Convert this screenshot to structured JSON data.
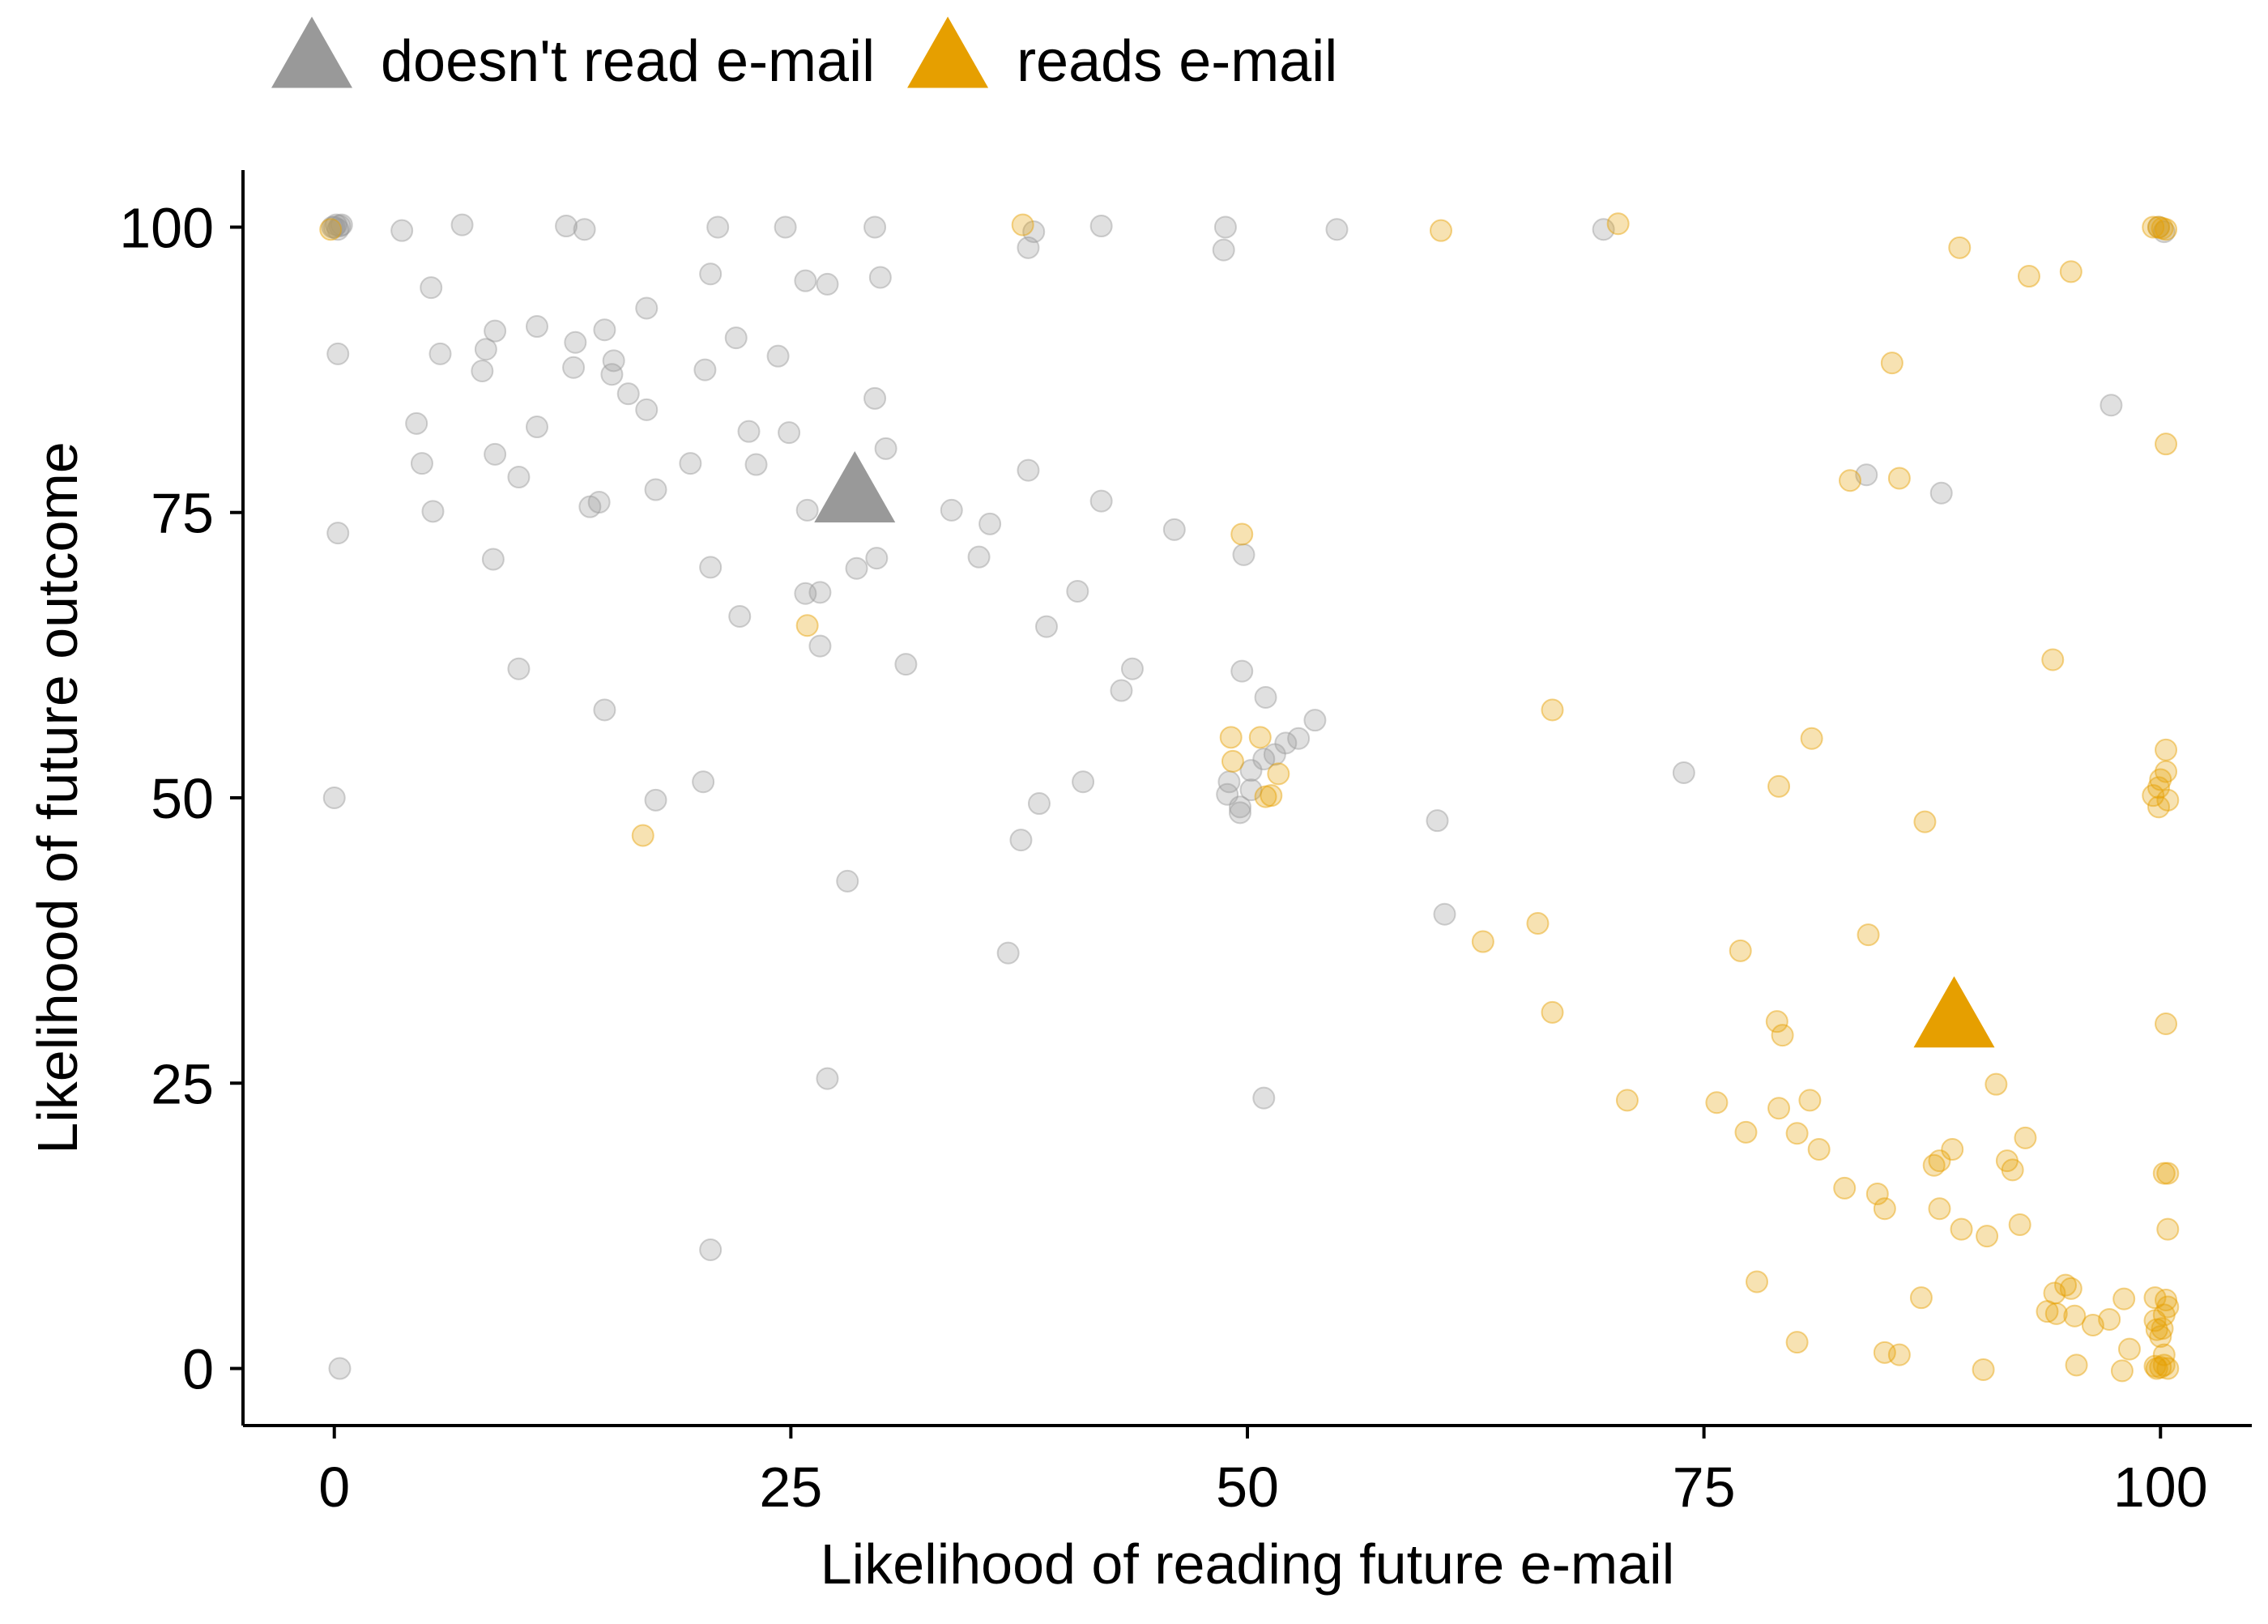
{
  "chart_data": {
    "type": "scatter",
    "title": "",
    "xlabel": "Likelihood of reading future e-mail",
    "ylabel": "Likelihood of future outcome",
    "xlim": [
      -5,
      105
    ],
    "ylim": [
      -5,
      105
    ],
    "xticks": [
      0,
      25,
      50,
      75,
      100
    ],
    "yticks": [
      0,
      25,
      50,
      75,
      100
    ],
    "grid": false,
    "legend_position": "top-left",
    "series": [
      {
        "name": "doesn't read e-mail",
        "color": "#999999",
        "marker": "circle",
        "opacity": 0.3,
        "mean_marker": "triangle",
        "mean": {
          "x": 28.5,
          "y": 76.5
        },
        "points": [
          [
            0,
            100
          ],
          [
            0.1,
            100.2
          ],
          [
            0.2,
            99.8
          ],
          [
            0.3,
            100.1
          ],
          [
            -0.1,
            100
          ],
          [
            0.4,
            100.2
          ],
          [
            3.7,
            99.7
          ],
          [
            7,
            100.2
          ],
          [
            12.7,
            100.1
          ],
          [
            13.7,
            99.8
          ],
          [
            21,
            100
          ],
          [
            24.7,
            100
          ],
          [
            29.6,
            100
          ],
          [
            38.3,
            99.6
          ],
          [
            42,
            100.1
          ],
          [
            48.8,
            100
          ],
          [
            54.9,
            99.8
          ],
          [
            69.5,
            99.8
          ],
          [
            38,
            98.2
          ],
          [
            48.7,
            98
          ],
          [
            99.9,
            100
          ],
          [
            100.2,
            99.6
          ],
          [
            0.2,
            88.9
          ],
          [
            5.3,
            94.7
          ],
          [
            5.8,
            88.9
          ],
          [
            8.3,
            89.3
          ],
          [
            8.1,
            87.4
          ],
          [
            8.8,
            90.9
          ],
          [
            11.1,
            91.3
          ],
          [
            13.2,
            89.9
          ],
          [
            13.1,
            87.7
          ],
          [
            14.8,
            91
          ],
          [
            15.3,
            88.3
          ],
          [
            15.2,
            87.1
          ],
          [
            17.1,
            92.9
          ],
          [
            20.6,
            95.9
          ],
          [
            22,
            90.3
          ],
          [
            20.3,
            87.5
          ],
          [
            24.3,
            88.7
          ],
          [
            25.8,
            95.3
          ],
          [
            27,
            95
          ],
          [
            29.9,
            95.6
          ],
          [
            16.1,
            85.4
          ],
          [
            17.1,
            84
          ],
          [
            29.6,
            85
          ],
          [
            4.5,
            82.8
          ],
          [
            4.8,
            79.3
          ],
          [
            8.8,
            80.1
          ],
          [
            11.1,
            82.5
          ],
          [
            10.1,
            78.1
          ],
          [
            5.4,
            75.1
          ],
          [
            14,
            75.5
          ],
          [
            14.5,
            75.9
          ],
          [
            17.6,
            77
          ],
          [
            19.5,
            79.3
          ],
          [
            22.7,
            82.1
          ],
          [
            23.1,
            79.2
          ],
          [
            24.9,
            82
          ],
          [
            30.2,
            80.6
          ],
          [
            25.9,
            75.2
          ],
          [
            38,
            78.7
          ],
          [
            0.2,
            73.2
          ],
          [
            8.7,
            70.9
          ],
          [
            20.6,
            70.2
          ],
          [
            29.7,
            71
          ],
          [
            35.9,
            74
          ],
          [
            33.8,
            75.2
          ],
          [
            35.3,
            71.1
          ],
          [
            42,
            76
          ],
          [
            46,
            73.5
          ],
          [
            49.8,
            71.3
          ],
          [
            28.6,
            70.1
          ],
          [
            25.8,
            67.9
          ],
          [
            26.6,
            68
          ],
          [
            22.2,
            65.9
          ],
          [
            26.6,
            63.3
          ],
          [
            39,
            65
          ],
          [
            40.7,
            68.1
          ],
          [
            10.1,
            61.3
          ],
          [
            31.3,
            61.7
          ],
          [
            43.7,
            61.3
          ],
          [
            43.1,
            59.4
          ],
          [
            49.7,
            61.1
          ],
          [
            51,
            58.8
          ],
          [
            53.7,
            56.8
          ],
          [
            52.8,
            55.2
          ],
          [
            52.1,
            54.8
          ],
          [
            51.5,
            53.8
          ],
          [
            50.9,
            53.4
          ],
          [
            50.2,
            52.4
          ],
          [
            49,
            51.4
          ],
          [
            48.9,
            50.3
          ],
          [
            49.6,
            49.2
          ],
          [
            49.6,
            48.7
          ],
          [
            50.2,
            50.7
          ],
          [
            14.8,
            57.7
          ],
          [
            17.6,
            49.8
          ],
          [
            20.2,
            51.4
          ],
          [
            38.6,
            49.5
          ],
          [
            41,
            51.4
          ],
          [
            37.6,
            46.3
          ],
          [
            60.4,
            48
          ],
          [
            73.9,
            52.2
          ],
          [
            0,
            50
          ],
          [
            28.1,
            42.7
          ],
          [
            60.8,
            39.8
          ],
          [
            36.9,
            36.4
          ],
          [
            27,
            25.4
          ],
          [
            50.9,
            23.7
          ],
          [
            20.6,
            10.4
          ],
          [
            0.3,
            0
          ],
          [
            97.3,
            84.4
          ],
          [
            83.9,
            78.3
          ],
          [
            88,
            76.7
          ]
        ]
      },
      {
        "name": "reads e-mail",
        "color": "#E69F00",
        "marker": "circle",
        "opacity": 0.3,
        "mean_marker": "triangle",
        "mean": {
          "x": 88.7,
          "y": 30.5
        },
        "points": [
          [
            -0.2,
            99.8
          ],
          [
            37.7,
            100.2
          ],
          [
            60.6,
            99.7
          ],
          [
            70.3,
            100.3
          ],
          [
            89,
            98.2
          ],
          [
            92.8,
            95.7
          ],
          [
            95.1,
            96.1
          ],
          [
            99.9,
            100
          ],
          [
            100.1,
            99.9
          ],
          [
            99.6,
            100
          ],
          [
            100.3,
            99.8
          ],
          [
            85.3,
            88.1
          ],
          [
            83,
            77.8
          ],
          [
            85.7,
            78
          ],
          [
            100.3,
            81
          ],
          [
            49.7,
            73.1
          ],
          [
            25.9,
            65.1
          ],
          [
            94.1,
            62.1
          ],
          [
            66.7,
            57.7
          ],
          [
            80.9,
            55.2
          ],
          [
            49.1,
            55.3
          ],
          [
            50.7,
            55.3
          ],
          [
            49.2,
            53.2
          ],
          [
            51.7,
            52.1
          ],
          [
            51,
            50.1
          ],
          [
            51.3,
            50.2
          ],
          [
            79.1,
            51
          ],
          [
            87.1,
            47.9
          ],
          [
            100.3,
            54.2
          ],
          [
            100.3,
            52.3
          ],
          [
            100,
            51.6
          ],
          [
            99.9,
            50.9
          ],
          [
            99.6,
            50.2
          ],
          [
            99.9,
            49.2
          ],
          [
            100.4,
            49.8
          ],
          [
            16.9,
            46.7
          ],
          [
            62.9,
            37.4
          ],
          [
            65.9,
            39
          ],
          [
            84,
            38
          ],
          [
            77,
            36.6
          ],
          [
            66.7,
            31.2
          ],
          [
            79,
            30.4
          ],
          [
            79.3,
            29.2
          ],
          [
            100.3,
            30.2
          ],
          [
            70.8,
            23.5
          ],
          [
            75.7,
            23.3
          ],
          [
            77.3,
            20.7
          ],
          [
            79.1,
            22.8
          ],
          [
            80.1,
            20.6
          ],
          [
            80.8,
            23.5
          ],
          [
            81.3,
            19.2
          ],
          [
            82.7,
            15.8
          ],
          [
            84.5,
            15.3
          ],
          [
            84.9,
            14
          ],
          [
            87.9,
            14
          ],
          [
            87.9,
            18.2
          ],
          [
            87.6,
            17.8
          ],
          [
            88.6,
            19.2
          ],
          [
            89.1,
            12.2
          ],
          [
            90.5,
            11.6
          ],
          [
            91,
            24.9
          ],
          [
            91.6,
            18.2
          ],
          [
            91.9,
            17.4
          ],
          [
            92.6,
            20.2
          ],
          [
            92.3,
            12.6
          ],
          [
            100.2,
            17.1
          ],
          [
            100.4,
            17.1
          ],
          [
            100.4,
            12.2
          ],
          [
            77.9,
            7.6
          ],
          [
            86.9,
            6.2
          ],
          [
            93.8,
            5
          ],
          [
            94.2,
            6.6
          ],
          [
            94.3,
            4.8
          ],
          [
            94.8,
            7.3
          ],
          [
            95.1,
            7
          ],
          [
            95.3,
            4.6
          ],
          [
            96.3,
            3.8
          ],
          [
            97.2,
            4.3
          ],
          [
            98,
            6.1
          ],
          [
            98.3,
            1.7
          ],
          [
            99.7,
            6.2
          ],
          [
            99.7,
            4.2
          ],
          [
            99.8,
            3.4
          ],
          [
            100,
            2.8
          ],
          [
            100.1,
            3.5
          ],
          [
            100.2,
            4.7
          ],
          [
            100.3,
            6
          ],
          [
            100.4,
            5.4
          ],
          [
            100.2,
            1.2
          ],
          [
            99.8,
            0
          ],
          [
            100,
            0.1
          ],
          [
            100.2,
            0.3
          ],
          [
            100.4,
            0
          ],
          [
            99.7,
            0.2
          ],
          [
            80.1,
            2.3
          ],
          [
            84.9,
            1.4
          ],
          [
            85.7,
            1.2
          ],
          [
            90.3,
            -0.1
          ],
          [
            95.4,
            0.3
          ],
          [
            97.9,
            -0.2
          ]
        ]
      }
    ]
  }
}
